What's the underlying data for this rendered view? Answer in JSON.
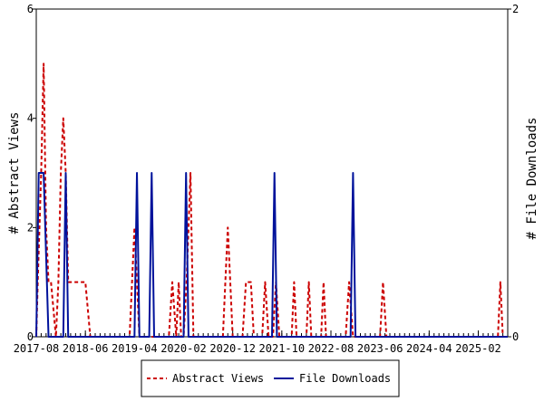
{
  "chart_data": {
    "type": "line",
    "ylabel_left": "# Abstract Views",
    "ylabel_right": "# File Downloads",
    "left_axis": {
      "ylim": [
        0,
        6
      ],
      "ticks": [
        0,
        2,
        4,
        6
      ]
    },
    "right_axis": {
      "ylim": [
        0,
        2
      ],
      "ticks": [
        0,
        2
      ]
    },
    "x_tick_labels": [
      "2017-08",
      "2018-06",
      "2019-04",
      "2020-02",
      "2020-12",
      "2021-10",
      "2022-08",
      "2023-06",
      "2024-04",
      "2025-02"
    ],
    "x_tick_label_months": [
      0,
      10,
      20,
      30,
      40,
      50,
      60,
      70,
      80,
      90
    ],
    "x_range_months": [
      0,
      96
    ],
    "legend_placement": "bottom",
    "grid": false,
    "series": [
      {
        "name": "Abstract Views",
        "axis": "left",
        "color": "#cc0000",
        "style": "dashed",
        "points": [
          [
            0,
            0
          ],
          [
            0.3,
            1
          ],
          [
            1,
            3
          ],
          [
            1.5,
            5
          ],
          [
            2,
            2
          ],
          [
            2.5,
            1
          ],
          [
            3,
            1
          ],
          [
            3.5,
            0.5
          ],
          [
            4,
            0
          ],
          [
            4.5,
            1
          ],
          [
            5,
            3
          ],
          [
            5.5,
            4
          ],
          [
            6,
            3
          ],
          [
            6.5,
            1
          ],
          [
            7,
            1
          ],
          [
            8,
            1
          ],
          [
            9,
            1
          ],
          [
            10,
            1
          ],
          [
            10.5,
            0.5
          ],
          [
            11,
            0
          ],
          [
            19,
            0
          ],
          [
            19.5,
            1
          ],
          [
            20,
            2
          ],
          [
            20.5,
            1
          ],
          [
            21,
            0
          ],
          [
            27,
            0
          ],
          [
            27.7,
            1
          ],
          [
            28.5,
            0
          ],
          [
            29,
            1
          ],
          [
            29.5,
            0
          ],
          [
            30,
            0
          ],
          [
            30.6,
            1
          ],
          [
            31,
            2
          ],
          [
            31.4,
            3
          ],
          [
            32,
            0
          ],
          [
            38,
            0
          ],
          [
            38.5,
            1
          ],
          [
            39,
            2
          ],
          [
            39.5,
            1
          ],
          [
            40,
            0
          ],
          [
            42,
            0
          ],
          [
            42.7,
            1
          ],
          [
            43.7,
            1
          ],
          [
            44.3,
            0
          ],
          [
            46,
            0
          ],
          [
            46.6,
            1
          ],
          [
            47.3,
            0
          ],
          [
            48.2,
            0
          ],
          [
            48.8,
            1
          ],
          [
            49.5,
            0
          ],
          [
            52,
            0
          ],
          [
            52.5,
            1
          ],
          [
            53,
            0
          ],
          [
            55,
            0
          ],
          [
            55.5,
            1
          ],
          [
            56,
            0
          ],
          [
            58,
            0
          ],
          [
            58.5,
            1
          ],
          [
            59,
            0
          ],
          [
            63,
            0
          ],
          [
            63.7,
            1
          ],
          [
            64.5,
            0
          ],
          [
            70,
            0
          ],
          [
            70.6,
            1
          ],
          [
            71.3,
            0
          ],
          [
            94,
            0
          ],
          [
            94.5,
            1
          ],
          [
            95,
            0
          ]
        ]
      },
      {
        "name": "File Downloads",
        "axis": "right",
        "color": "#00129b",
        "style": "solid",
        "points": [
          [
            0,
            0
          ],
          [
            0.5,
            1
          ],
          [
            1,
            1
          ],
          [
            1.5,
            1
          ],
          [
            2,
            0.5
          ],
          [
            2.5,
            0
          ],
          [
            5.5,
            0
          ],
          [
            6,
            1
          ],
          [
            6.5,
            0
          ],
          [
            20,
            0
          ],
          [
            20.5,
            1
          ],
          [
            21,
            0
          ],
          [
            23,
            0
          ],
          [
            23.5,
            1
          ],
          [
            24,
            0
          ],
          [
            30,
            0
          ],
          [
            30.5,
            1
          ],
          [
            31,
            0
          ],
          [
            48,
            0
          ],
          [
            48.5,
            1
          ],
          [
            49,
            0
          ],
          [
            64,
            0
          ],
          [
            64.5,
            1
          ],
          [
            65,
            0
          ],
          [
            96,
            0
          ]
        ]
      }
    ]
  }
}
